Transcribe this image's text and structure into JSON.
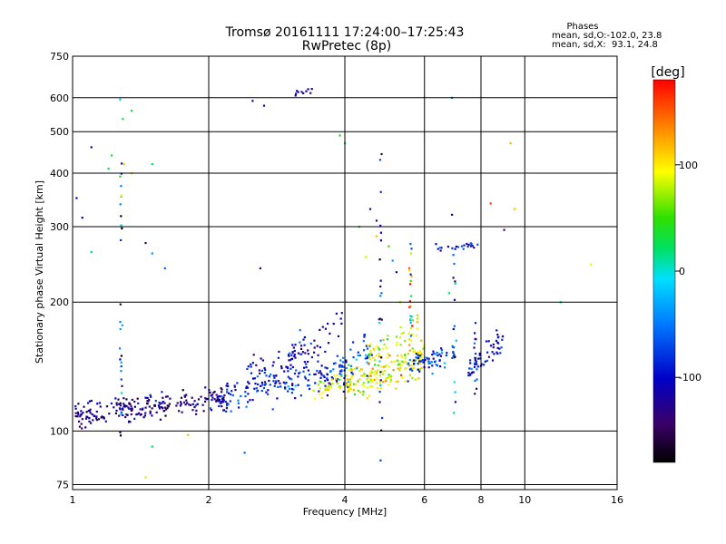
{
  "chart_data": {
    "type": "scatter",
    "title": "Tromsø 20161111 17:24:00–17:25:43",
    "subtitle": "RwPretec (8p)",
    "xlabel": "Frequency [MHz]",
    "ylabel": "Stationary phase Virtual Height [km]",
    "xscale": "log",
    "yscale": "log",
    "xlim": [
      1,
      16
    ],
    "ylim": [
      73,
      750
    ],
    "x_ticks": [
      1,
      2,
      4,
      6,
      8,
      10,
      16
    ],
    "x_tick_labels": [
      "1",
      "2",
      "4",
      "6",
      "8",
      "10",
      "16"
    ],
    "y_ticks": [
      75,
      100,
      200,
      300,
      400,
      500,
      600,
      750
    ],
    "y_tick_labels": [
      "75",
      "100",
      "200",
      "300",
      "400",
      "500",
      "600",
      "750"
    ],
    "grid": true,
    "stats": {
      "title": "Phases",
      "line1": "mean, sd,O:-102.0, 23.8",
      "line2": "mean, sd,X:  93.1, 24.8"
    },
    "colorbar": {
      "label": "[deg]",
      "range": [
        -180,
        180
      ],
      "ticks": [
        100,
        0,
        -100
      ],
      "tick_labels": [
        "100",
        "0",
        "-100"
      ],
      "colormap": "rainbow"
    },
    "traces": [
      {
        "x_start": 1.0,
        "x_end": 2.2,
        "h_start": 109,
        "h_end": 120,
        "spread": 0.035,
        "phase": -130,
        "phase_sd": 25,
        "count": 230
      },
      {
        "x_start": 2.0,
        "x_end": 4.0,
        "h_start": 118,
        "h_end": 138,
        "spread": 0.045,
        "phase": -90,
        "phase_sd": 25,
        "count": 170
      },
      {
        "x_start": 2.4,
        "x_end": 3.5,
        "h_start": 138,
        "h_end": 150,
        "spread": 0.04,
        "phase": -110,
        "phase_sd": 20,
        "count": 45
      },
      {
        "x_start": 3.4,
        "x_end": 4.2,
        "h_start": 125,
        "h_end": 135,
        "spread": 0.03,
        "phase": 90,
        "phase_sd": 20,
        "count": 40
      },
      {
        "x_start": 4.0,
        "x_end": 6.0,
        "h_start": 128,
        "h_end": 148,
        "spread": 0.05,
        "phase": 95,
        "phase_sd": 22,
        "count": 180
      },
      {
        "x_start": 3.9,
        "x_end": 4.6,
        "h_start": 135,
        "h_end": 160,
        "spread": 0.05,
        "phase": -60,
        "phase_sd": 40,
        "count": 45
      },
      {
        "x_start": 4.5,
        "x_end": 5.8,
        "h_start": 150,
        "h_end": 175,
        "spread": 0.04,
        "phase": 90,
        "phase_sd": 25,
        "count": 45
      },
      {
        "x_start": 5.5,
        "x_end": 7.0,
        "h_start": 140,
        "h_end": 152,
        "spread": 0.03,
        "phase": -80,
        "phase_sd": 30,
        "count": 70
      },
      {
        "x_start": 3.0,
        "x_end": 4.0,
        "h_start": 150,
        "h_end": 185,
        "spread": 0.05,
        "phase": -100,
        "phase_sd": 25,
        "count": 40
      },
      {
        "x_start": 7.5,
        "x_end": 9.0,
        "h_start": 140,
        "h_end": 165,
        "spread": 0.04,
        "phase": -100,
        "phase_sd": 25,
        "count": 55
      },
      {
        "x_start": 6.3,
        "x_end": 8.0,
        "h_start": 268,
        "h_end": 272,
        "spread": 0.01,
        "phase": -100,
        "phase_sd": 25,
        "count": 22
      },
      {
        "x_start": 3.1,
        "x_end": 3.4,
        "h_start": 615,
        "h_end": 628,
        "spread": 0.01,
        "phase": -120,
        "phase_sd": 10,
        "count": 10
      }
    ],
    "columns": [
      {
        "x": 1.28,
        "h_min": 88,
        "h_max": 620,
        "phase": -100,
        "phase_sd": 80,
        "count": 30
      },
      {
        "x": 4.8,
        "h_min": 78,
        "h_max": 480,
        "phase": -100,
        "phase_sd": 60,
        "count": 26
      },
      {
        "x": 5.6,
        "h_min": 160,
        "h_max": 280,
        "phase": 60,
        "phase_sd": 90,
        "count": 20
      },
      {
        "x": 7.0,
        "h_min": 110,
        "h_max": 260,
        "phase": -80,
        "phase_sd": 60,
        "count": 14
      },
      {
        "x": 7.8,
        "h_min": 120,
        "h_max": 180,
        "phase": -100,
        "phase_sd": 40,
        "count": 14
      }
    ],
    "stray_points": [
      [
        1.02,
        350,
        -110
      ],
      [
        1.05,
        315,
        -100
      ],
      [
        1.1,
        460,
        -120
      ],
      [
        1.2,
        410,
        30
      ],
      [
        1.22,
        440,
        40
      ],
      [
        1.3,
        420,
        110
      ],
      [
        1.35,
        400,
        120
      ],
      [
        1.45,
        275,
        -150
      ],
      [
        1.5,
        260,
        -40
      ],
      [
        1.5,
        420,
        20
      ],
      [
        1.45,
        78,
        80
      ],
      [
        1.5,
        92,
        20
      ],
      [
        1.8,
        98,
        120
      ],
      [
        2.5,
        590,
        -110
      ],
      [
        2.65,
        575,
        -120
      ],
      [
        2.6,
        240,
        -140
      ],
      [
        2.4,
        89,
        -60
      ],
      [
        3.9,
        490,
        40
      ],
      [
        4.0,
        470,
        30
      ],
      [
        4.3,
        300,
        40
      ],
      [
        4.45,
        255,
        80
      ],
      [
        4.55,
        330,
        -130
      ],
      [
        4.7,
        285,
        120
      ],
      [
        4.7,
        310,
        -140
      ],
      [
        5.0,
        270,
        50
      ],
      [
        5.1,
        250,
        -40
      ],
      [
        5.2,
        235,
        -120
      ],
      [
        5.6,
        260,
        80
      ],
      [
        5.3,
        200,
        70
      ],
      [
        6.8,
        210,
        20
      ],
      [
        6.9,
        600,
        -40
      ],
      [
        6.9,
        320,
        -120
      ],
      [
        8.4,
        340,
        160
      ],
      [
        9.0,
        295,
        -140
      ],
      [
        9.3,
        470,
        120
      ],
      [
        9.5,
        330,
        120
      ],
      [
        12.0,
        200,
        20
      ],
      [
        14.0,
        245,
        100
      ],
      [
        1.1,
        262,
        20
      ],
      [
        1.35,
        560,
        30
      ],
      [
        1.6,
        240,
        -60
      ]
    ]
  }
}
